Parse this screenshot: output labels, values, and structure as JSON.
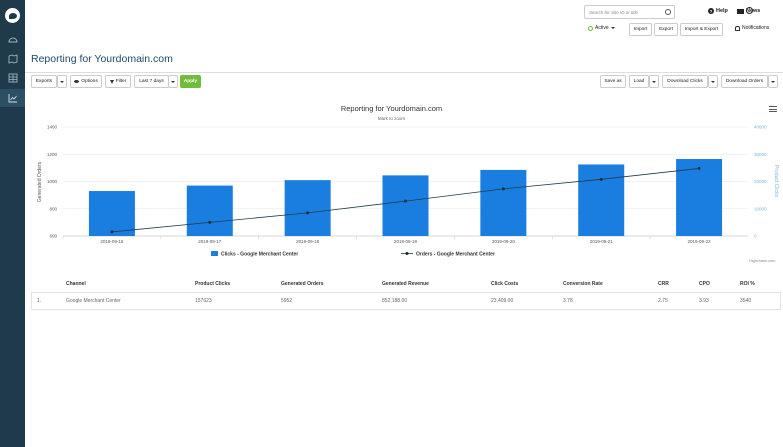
{
  "sidebar": {
    "items": [
      "dashboard",
      "map",
      "table",
      "reporting"
    ],
    "active": "reporting"
  },
  "header": {
    "search_placeholder": "Search for Site ID or title",
    "help": "Help",
    "news": "News",
    "status": "Active",
    "import": "Import",
    "export": "Export",
    "import_export": "Import & Export",
    "notifications": "Notifications"
  },
  "page": {
    "title": "Reporting for Yourdomain.com"
  },
  "toolbar": {
    "exports": "Exports",
    "options": "Options",
    "filter": "Filter",
    "range": "Last 7 days",
    "apply": "Apply",
    "save_as": "Save as",
    "load": "Load",
    "download_clicks": "Download Clicks",
    "download_orders": "Download Orders"
  },
  "chart_data": {
    "type": "bar",
    "title": "Reporting for Yourdomain.com",
    "subtitle": "Mark to zoom",
    "categories": [
      "2019-09-16",
      "2019-09-17",
      "2019-09-18",
      "2019-09-19",
      "2019-09-20",
      "2019-09-21",
      "2019-09-22"
    ],
    "ylabel_left": "Generated Orders",
    "ylabel_right": "Product Clicks",
    "left_axis": {
      "min": 600,
      "max": 1400,
      "ticks": [
        "600",
        "800",
        "1000",
        "1200",
        "1400"
      ]
    },
    "right_axis": {
      "min": 0,
      "max": 40000,
      "ticks": [
        "0",
        "10000",
        "20000",
        "30000",
        "40000"
      ]
    },
    "series": [
      {
        "name": "Clicks - Google Merchant Center",
        "kind": "bar",
        "axis": "left",
        "values": [
          930,
          970,
          1010,
          1045,
          1085,
          1125,
          1165
        ],
        "color": "#1a7ee0"
      },
      {
        "name": "Orders - Google Merchant Center",
        "kind": "line",
        "axis": "right",
        "values": [
          1500,
          5000,
          8500,
          12800,
          17300,
          20800,
          24800
        ],
        "color": "#1f3a4b"
      }
    ],
    "legend": "bottom",
    "credit": "Highcharts.com"
  },
  "table": {
    "headers": [
      "Channel",
      "Product Clicks",
      "Generated Orders",
      "Generated Revenue",
      "Click Costs",
      "Conversion Rate",
      "CRR",
      "CPO",
      "ROI %"
    ],
    "rows": [
      {
        "index": "1.",
        "cells": [
          "Google Merchant Center",
          "157623",
          "5952",
          "852,188.00",
          "23,409.00",
          "3.78",
          "2.75",
          "3.93",
          "3540"
        ]
      }
    ]
  }
}
